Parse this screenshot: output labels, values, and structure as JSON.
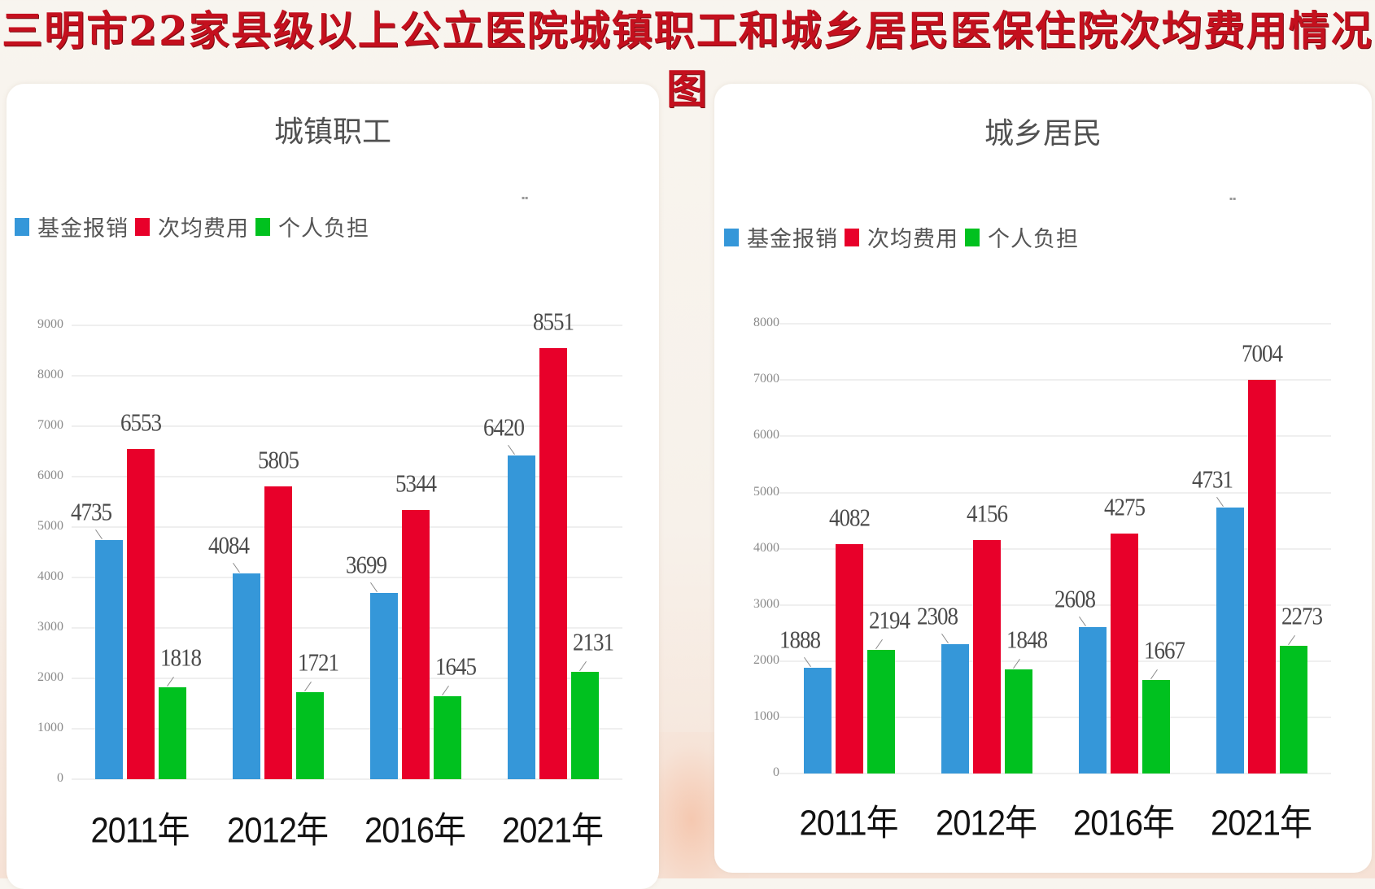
{
  "title": "三明市22家县级以上公立医院城镇职工和城乡居民医保住院次均费用情况图",
  "colors": {
    "fund": "#3597d9",
    "avg": "#e8002a",
    "personal": "#00c11f",
    "title": "#c4101e"
  },
  "panels": [
    {
      "title": "城镇职工",
      "legend": [
        "基金报销",
        "次均费用",
        "个人负担"
      ],
      "yticks": [
        "0",
        "1000",
        "2000",
        "3000",
        "4000",
        "5000",
        "6000",
        "7000",
        "8000",
        "9000"
      ],
      "categories": [
        "2011年",
        "2012年",
        "2016年",
        "2021年"
      ],
      "values": {
        "fund": [
          "4735",
          "4084",
          "3699",
          "6420"
        ],
        "avg": [
          "6553",
          "5805",
          "5344",
          "8551"
        ],
        "personal": [
          "1818",
          "1721",
          "1645",
          "2131"
        ]
      }
    },
    {
      "title": "城乡居民",
      "legend": [
        "基金报销",
        "次均费用",
        "个人负担"
      ],
      "yticks": [
        "0",
        "1000",
        "2000",
        "3000",
        "4000",
        "5000",
        "6000",
        "7000",
        "8000"
      ],
      "categories": [
        "2011年",
        "2012年",
        "2016年",
        "2021年"
      ],
      "values": {
        "fund": [
          "1888",
          "2308",
          "2608",
          "4731"
        ],
        "avg": [
          "4082",
          "4156",
          "4275",
          "7004"
        ],
        "personal": [
          "2194",
          "1848",
          "1667",
          "2273"
        ]
      }
    }
  ],
  "chart_data": [
    {
      "type": "bar",
      "title": "城镇职工",
      "categories": [
        "2011年",
        "2012年",
        "2016年",
        "2021年"
      ],
      "series": [
        {
          "name": "基金报销",
          "values": [
            4735,
            4084,
            3699,
            6420
          ]
        },
        {
          "name": "次均费用",
          "values": [
            6553,
            5805,
            5344,
            8551
          ]
        },
        {
          "name": "个人负担",
          "values": [
            1818,
            1721,
            1645,
            2131
          ]
        }
      ],
      "xlabel": "",
      "ylabel": "",
      "ylim": [
        0,
        9000
      ],
      "grid": true,
      "legend_position": "top-left"
    },
    {
      "type": "bar",
      "title": "城乡居民",
      "categories": [
        "2011年",
        "2012年",
        "2016年",
        "2021年"
      ],
      "series": [
        {
          "name": "基金报销",
          "values": [
            1888,
            2308,
            2608,
            4731
          ]
        },
        {
          "name": "次均费用",
          "values": [
            4082,
            4156,
            4275,
            7004
          ]
        },
        {
          "name": "个人负担",
          "values": [
            2194,
            1848,
            1667,
            2273
          ]
        }
      ],
      "xlabel": "",
      "ylabel": "",
      "ylim": [
        0,
        8000
      ],
      "grid": true,
      "legend_position": "top-left"
    }
  ]
}
